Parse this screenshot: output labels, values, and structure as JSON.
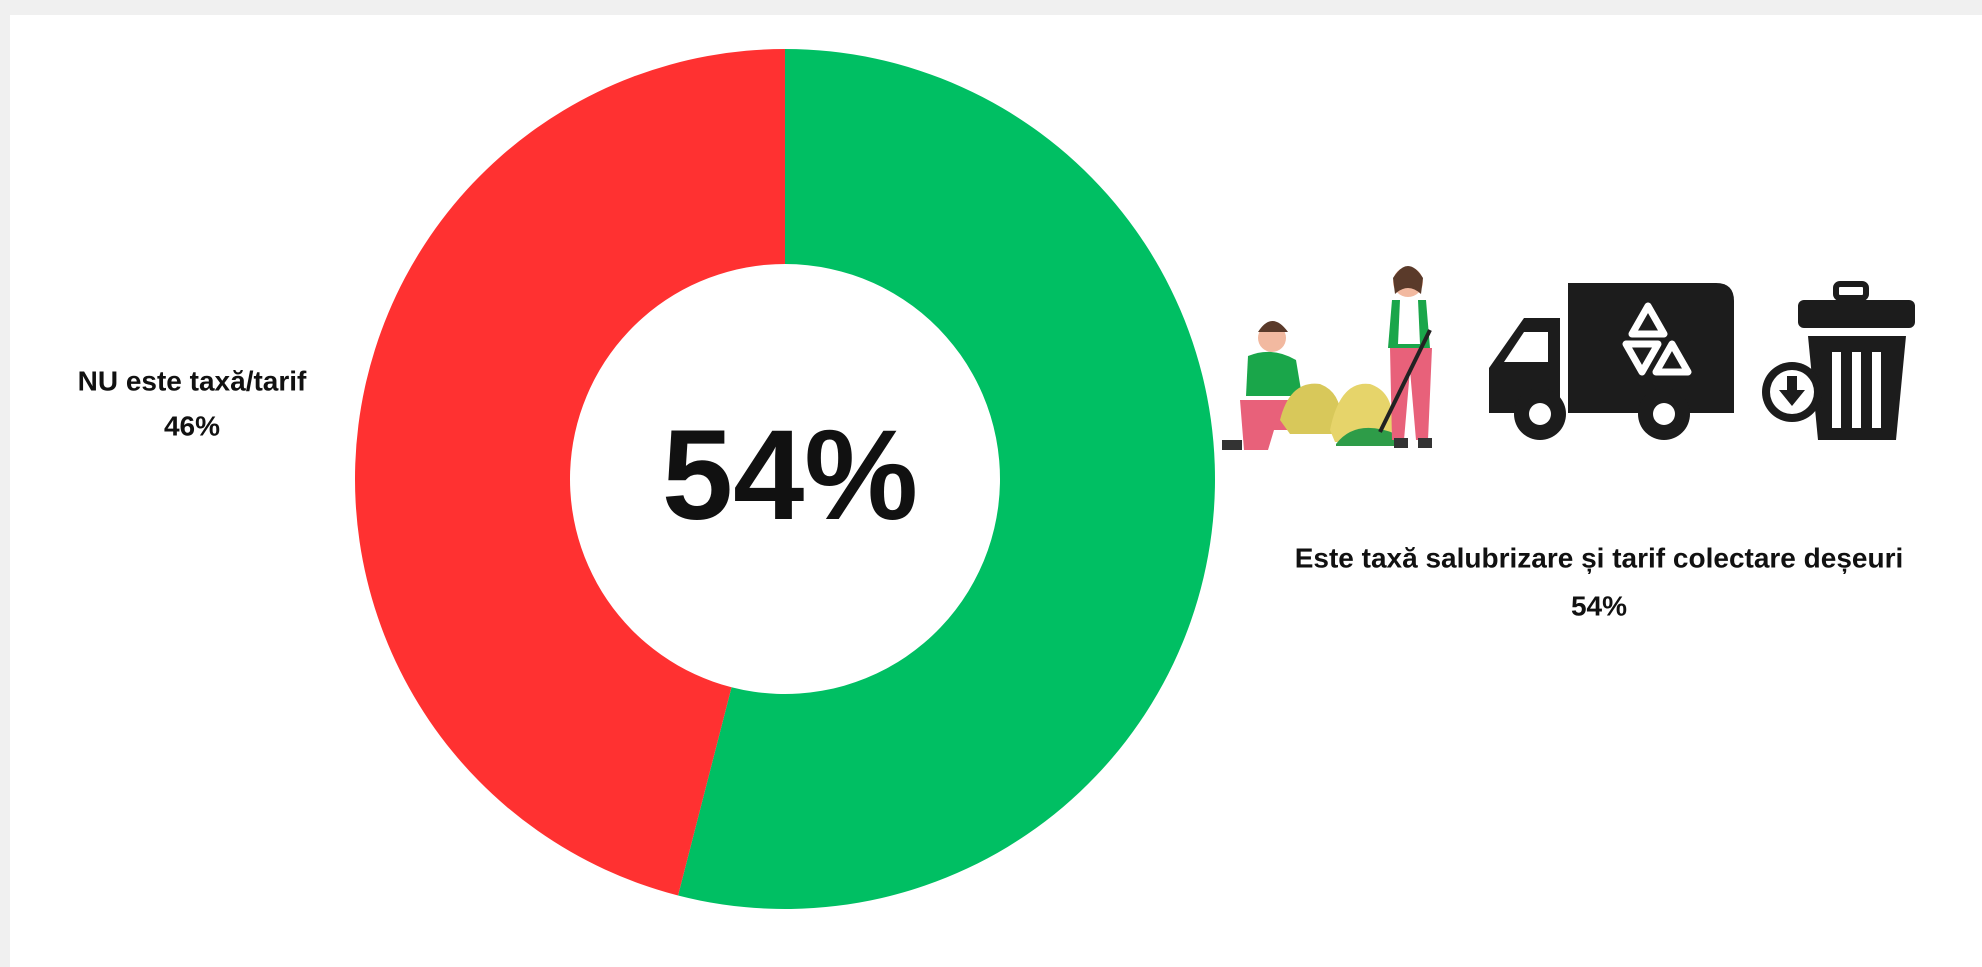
{
  "chart_data": {
    "type": "donut",
    "categories": [
      "Este taxă salubrizare și tarif colectare deșeuri",
      "NU este taxă/tarif"
    ],
    "values": [
      54,
      46
    ],
    "value_labels": [
      "54%",
      "46%"
    ],
    "colors": [
      "#00bf63",
      "#ff3131"
    ]
  }
}
